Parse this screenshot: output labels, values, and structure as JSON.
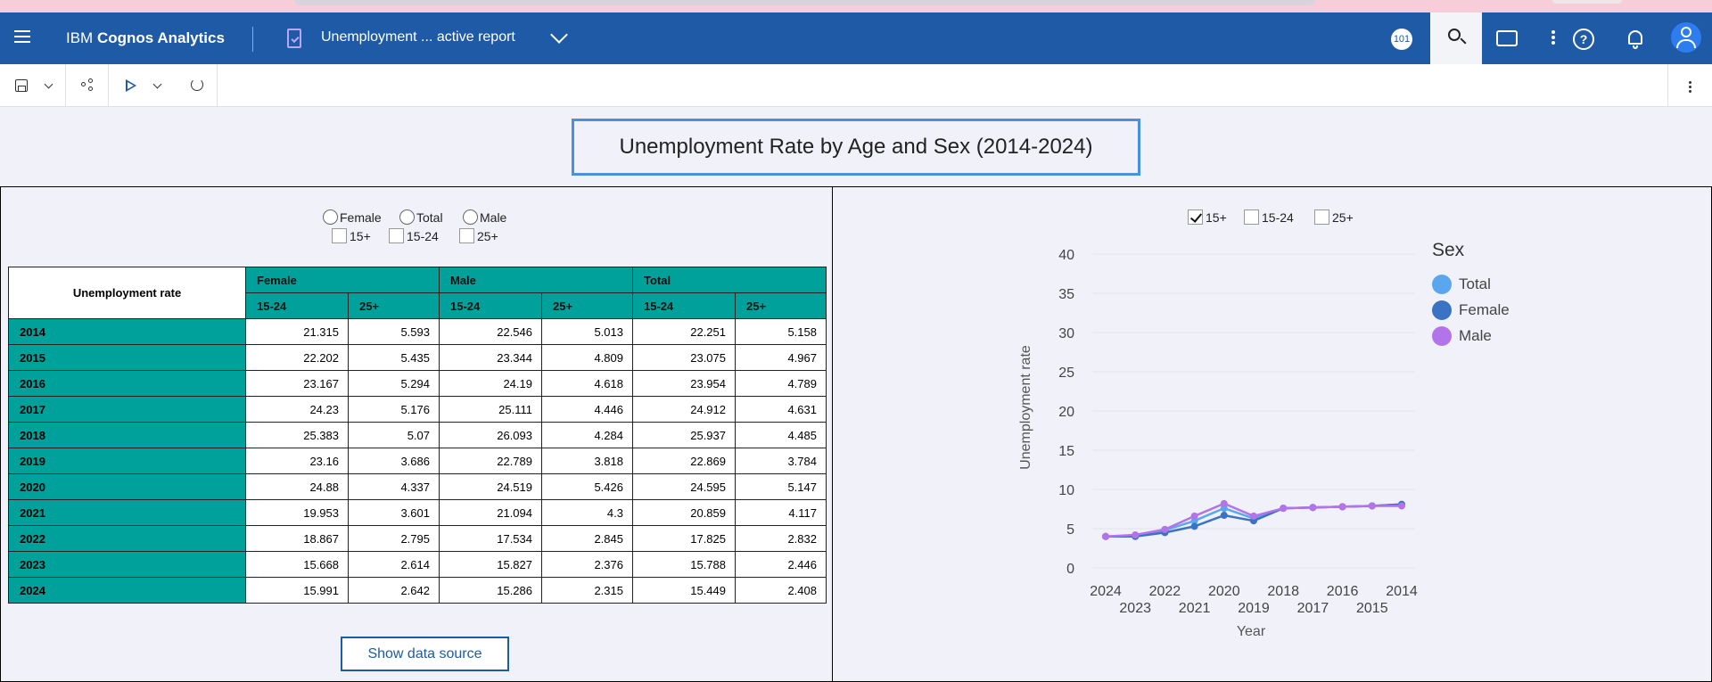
{
  "app": {
    "brand_light": "IBM",
    "brand_bold": "Cognos Analytics",
    "report_title": "Unemployment ... active report",
    "badge": "101"
  },
  "colors": {
    "topbar": "#1f5aa6",
    "teal": "#00a19a",
    "total": "#5aa7f0",
    "female": "#3b73c4",
    "male": "#b274e8"
  },
  "icons": [
    "menu-icon",
    "report-icon",
    "chevron-down-icon",
    "search-icon",
    "chat-icon",
    "overflow-menu-icon",
    "help-icon",
    "notification-icon",
    "user-icon",
    "save-icon",
    "share-icon",
    "run-icon",
    "refresh-icon"
  ],
  "title": "Unemployment Rate by Age and Sex (2014-2024)",
  "left_controls": {
    "radios": [
      "Female",
      "Total",
      "Male"
    ],
    "checks": [
      "15+",
      "15-24",
      "25+"
    ]
  },
  "right_controls": {
    "checks": [
      "15+",
      "15-24",
      "25+"
    ],
    "checked": "15+"
  },
  "table": {
    "corner": "Unemployment rate",
    "groups": [
      "Female",
      "Male",
      "Total"
    ],
    "subheaders": [
      "15-24",
      "25+",
      "15-24",
      "25+",
      "15-24",
      "25+"
    ],
    "rows": [
      {
        "year": "2014",
        "cells": [
          "21.315",
          "5.593",
          "22.546",
          "5.013",
          "22.251",
          "5.158"
        ]
      },
      {
        "year": "2015",
        "cells": [
          "22.202",
          "5.435",
          "23.344",
          "4.809",
          "23.075",
          "4.967"
        ]
      },
      {
        "year": "2016",
        "cells": [
          "23.167",
          "5.294",
          "24.19",
          "4.618",
          "23.954",
          "4.789"
        ]
      },
      {
        "year": "2017",
        "cells": [
          "24.23",
          "5.176",
          "25.111",
          "4.446",
          "24.912",
          "4.631"
        ]
      },
      {
        "year": "2018",
        "cells": [
          "25.383",
          "5.07",
          "26.093",
          "4.284",
          "25.937",
          "4.485"
        ]
      },
      {
        "year": "2019",
        "cells": [
          "23.16",
          "3.686",
          "22.789",
          "3.818",
          "22.869",
          "3.784"
        ]
      },
      {
        "year": "2020",
        "cells": [
          "24.88",
          "4.337",
          "24.519",
          "5.426",
          "24.595",
          "5.147"
        ]
      },
      {
        "year": "2021",
        "cells": [
          "19.953",
          "3.601",
          "21.094",
          "4.3",
          "20.859",
          "4.117"
        ]
      },
      {
        "year": "2022",
        "cells": [
          "18.867",
          "2.795",
          "17.534",
          "2.845",
          "17.825",
          "2.832"
        ]
      },
      {
        "year": "2023",
        "cells": [
          "15.668",
          "2.614",
          "15.827",
          "2.376",
          "15.788",
          "2.446"
        ]
      },
      {
        "year": "2024",
        "cells": [
          "15.991",
          "2.642",
          "15.286",
          "2.315",
          "15.449",
          "2.408"
        ]
      }
    ]
  },
  "show_data_source": "Show data source",
  "legend": {
    "title": "Sex",
    "items": [
      "Total",
      "Female",
      "Male"
    ]
  },
  "chart_data": {
    "type": "line",
    "x": [
      "2024",
      "2023",
      "2022",
      "2021",
      "2020",
      "2019",
      "2018",
      "2017",
      "2016",
      "2015",
      "2014"
    ],
    "ylabel": "Unemployment rate",
    "xlabel": "Year",
    "ylim": [
      0,
      40
    ],
    "yticks": [
      0,
      5,
      10,
      15,
      20,
      25,
      30,
      35,
      40
    ],
    "grid": true,
    "legend_position": "right",
    "series": [
      {
        "name": "Total",
        "color": "#5aa7f0",
        "values": [
          4.0,
          4.1,
          4.8,
          6.0,
          7.6,
          6.3,
          7.6,
          7.7,
          7.8,
          7.9,
          8.1
        ]
      },
      {
        "name": "Female",
        "color": "#3b73c4",
        "values": [
          4.0,
          4.0,
          4.5,
          5.3,
          6.7,
          6.0,
          7.6,
          7.7,
          7.8,
          7.9,
          8.1
        ]
      },
      {
        "name": "Male",
        "color": "#b274e8",
        "values": [
          4.0,
          4.2,
          4.9,
          6.6,
          8.2,
          6.6,
          7.6,
          7.7,
          7.8,
          7.9,
          7.9
        ]
      }
    ]
  }
}
